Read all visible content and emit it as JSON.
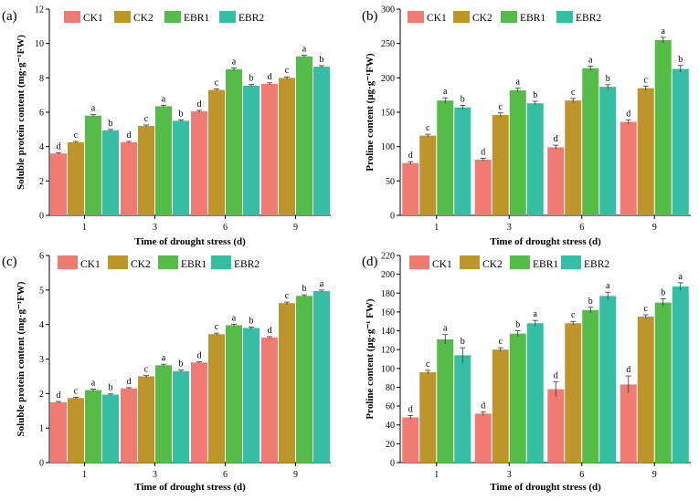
{
  "colors": {
    "CK1": "#f07b72",
    "CK2": "#bd962b",
    "EBR1": "#55bc47",
    "EBR2": "#36bea4"
  },
  "chart_data": [
    {
      "type": "bar",
      "panel": "(a)",
      "xlabel": "Time of drought stress (d)",
      "ylabel": "Soluble protein content (mg·g⁻¹FW)",
      "categories": [
        "1",
        "3",
        "6",
        "9"
      ],
      "ylim": [
        0,
        12
      ],
      "yticks": [
        0,
        2,
        4,
        6,
        8,
        10,
        12
      ],
      "series": [
        {
          "name": "CK1",
          "values": [
            3.6,
            4.25,
            6.05,
            7.65
          ],
          "errors": [
            0.05,
            0.05,
            0.06,
            0.06
          ],
          "letters": [
            "d",
            "d",
            "d",
            "d"
          ]
        },
        {
          "name": "CK2",
          "values": [
            4.25,
            5.2,
            7.3,
            8.0
          ],
          "errors": [
            0.05,
            0.06,
            0.06,
            0.06
          ],
          "letters": [
            "c",
            "c",
            "c",
            "c"
          ]
        },
        {
          "name": "EBR1",
          "values": [
            5.8,
            6.35,
            8.5,
            9.25
          ],
          "errors": [
            0.06,
            0.06,
            0.07,
            0.06
          ],
          "letters": [
            "a",
            "a",
            "a",
            "a"
          ]
        },
        {
          "name": "EBR2",
          "values": [
            4.95,
            5.5,
            7.55,
            8.65
          ],
          "errors": [
            0.05,
            0.05,
            0.06,
            0.06
          ],
          "letters": [
            "b",
            "b",
            "b",
            "b"
          ]
        }
      ]
    },
    {
      "type": "bar",
      "panel": "(b)",
      "xlabel": "Time of drought stress (d)",
      "ylabel": "Proline content (μg·g⁻¹FW)",
      "categories": [
        "1",
        "3",
        "6",
        "9"
      ],
      "ylim": [
        0,
        300
      ],
      "yticks": [
        0,
        50,
        100,
        150,
        200,
        250,
        300
      ],
      "series": [
        {
          "name": "CK1",
          "values": [
            76,
            81,
            99,
            136
          ],
          "errors": [
            2,
            2,
            3,
            3
          ],
          "letters": [
            "d",
            "d",
            "d",
            "d"
          ]
        },
        {
          "name": "CK2",
          "values": [
            116,
            146,
            167,
            185
          ],
          "errors": [
            2,
            3,
            3,
            3
          ],
          "letters": [
            "c",
            "c",
            "c",
            "c"
          ]
        },
        {
          "name": "EBR1",
          "values": [
            167,
            182,
            214,
            255
          ],
          "errors": [
            4,
            3,
            3,
            4
          ],
          "letters": [
            "a",
            "a",
            "a",
            "a"
          ]
        },
        {
          "name": "EBR2",
          "values": [
            157,
            163,
            187,
            213
          ],
          "errors": [
            3,
            3,
            3,
            5
          ],
          "letters": [
            "b",
            "b",
            "b",
            "b"
          ]
        }
      ]
    },
    {
      "type": "bar",
      "panel": "(c)",
      "xlabel": "Time of drought stress (d)",
      "ylabel": "Soluble protein content (mg·g⁻¹FW)",
      "categories": [
        "1",
        "3",
        "6",
        "9"
      ],
      "ylim": [
        0,
        6
      ],
      "yticks": [
        0,
        1,
        2,
        3,
        4,
        5,
        6
      ],
      "series": [
        {
          "name": "CK1",
          "values": [
            1.75,
            2.15,
            2.9,
            3.62
          ],
          "errors": [
            0.02,
            0.02,
            0.02,
            0.03
          ],
          "letters": [
            "d",
            "d",
            "d",
            "d"
          ]
        },
        {
          "name": "CK2",
          "values": [
            1.87,
            2.5,
            3.72,
            4.62
          ],
          "errors": [
            0.02,
            0.03,
            0.03,
            0.03
          ],
          "letters": [
            "c",
            "c",
            "c",
            "c"
          ]
        },
        {
          "name": "EBR1",
          "values": [
            2.1,
            2.82,
            3.98,
            4.83
          ],
          "errors": [
            0.03,
            0.03,
            0.03,
            0.03
          ],
          "letters": [
            "a",
            "a",
            "a",
            "b"
          ]
        },
        {
          "name": "EBR2",
          "values": [
            1.97,
            2.65,
            3.9,
            4.97
          ],
          "errors": [
            0.02,
            0.03,
            0.03,
            0.03
          ],
          "letters": [
            "b",
            "b",
            "b",
            "a"
          ]
        }
      ]
    },
    {
      "type": "bar",
      "panel": "(d)",
      "xlabel": "Time of drought stress (d)",
      "ylabel": "Proline content (μg·g⁻¹ FW)",
      "categories": [
        "1",
        "3",
        "6",
        "9"
      ],
      "ylim": [
        0,
        220
      ],
      "yticks": [
        0,
        20,
        40,
        60,
        80,
        100,
        120,
        140,
        160,
        180,
        200,
        220
      ],
      "series": [
        {
          "name": "CK1",
          "values": [
            48,
            52,
            78,
            83
          ],
          "errors": [
            2,
            2,
            8,
            9
          ],
          "letters": [
            "d",
            "d",
            "d",
            "d"
          ]
        },
        {
          "name": "CK2",
          "values": [
            96,
            120,
            148,
            155
          ],
          "errors": [
            2,
            2,
            2,
            2
          ],
          "letters": [
            "c",
            "c",
            "c",
            "c"
          ]
        },
        {
          "name": "EBR1",
          "values": [
            131,
            137,
            162,
            170
          ],
          "errors": [
            5,
            3,
            3,
            4
          ],
          "letters": [
            "a",
            "b",
            "b",
            "b"
          ]
        },
        {
          "name": "EBR2",
          "values": [
            114,
            148,
            177,
            187
          ],
          "errors": [
            8,
            3,
            4,
            4
          ],
          "letters": [
            "b",
            "a",
            "a",
            "a"
          ]
        }
      ]
    }
  ]
}
